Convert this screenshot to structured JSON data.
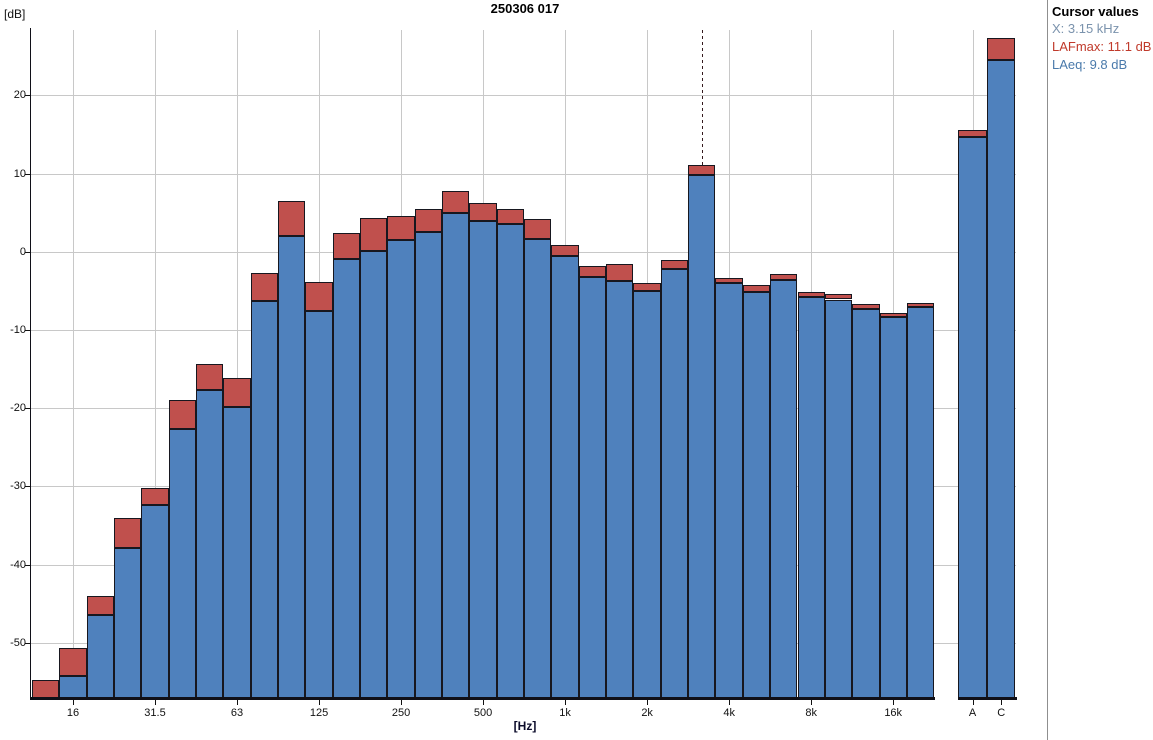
{
  "title": "250306 017",
  "axes": {
    "y_unit_label": "[dB]",
    "x_unit_label": "[Hz]",
    "y_ticks": [
      20,
      10,
      0,
      -10,
      -20,
      -30,
      -40,
      -50
    ],
    "x_tick_labels": [
      "16",
      "31.5",
      "63",
      "125",
      "250",
      "500",
      "1k",
      "2k",
      "4k",
      "8k",
      "16k",
      "A",
      "C"
    ]
  },
  "cursor_panel": {
    "title": "Cursor values",
    "x_line": "X: 3.15 kHz",
    "lafmax_line": "LAFmax: 11.1 dB",
    "laeq_line": "LAeq: 9.8 dB"
  },
  "colors": {
    "bar_fill_laeq": "#4f81bd",
    "bar_fill_lafmax": "#c0504d",
    "bar_border": "#17171f",
    "grid": "#c8c8c8",
    "axis": "#101018",
    "cursor_line": "#351a1e",
    "panel_title": "#000000",
    "panel_x": "#7b93ad",
    "panel_lafmax": "#c03a2b",
    "panel_laeq": "#4a7aab",
    "separator": "#8f8f8f"
  },
  "chart_data": {
    "type": "bar",
    "title": "250306 017",
    "xlabel": "[Hz]",
    "ylabel": "[dB]",
    "ylim": [
      -57,
      28.5
    ],
    "grid": true,
    "categories": [
      "12.5",
      "16",
      "20",
      "25",
      "31.5",
      "40",
      "50",
      "63",
      "80",
      "100",
      "125",
      "160",
      "200",
      "250",
      "315",
      "400",
      "500",
      "630",
      "800",
      "1k",
      "1.25k",
      "1.6k",
      "2k",
      "2.5k",
      "3.15k",
      "4k",
      "5k",
      "6.3k",
      "8k",
      "10k",
      "12.5k",
      "16k",
      "20k",
      "A",
      "C"
    ],
    "labeled_band_indices": [
      1,
      4,
      7,
      10,
      13,
      16,
      19,
      22,
      25,
      28,
      31,
      33,
      34
    ],
    "vertical_gridline_indices": [
      1,
      4,
      7,
      10,
      13,
      16,
      19,
      22,
      25,
      28,
      31,
      33
    ],
    "series": [
      {
        "name": "LAeq",
        "values": [
          -57,
          -54.3,
          -46.4,
          -37.9,
          -32.4,
          -22.6,
          -17.7,
          -19.8,
          -6.3,
          2.0,
          -7.6,
          -0.9,
          0.1,
          1.5,
          2.5,
          5.0,
          4.0,
          3.5,
          1.7,
          -0.5,
          -3.2,
          -3.7,
          -5.0,
          -2.2,
          9.8,
          -4.0,
          -5.2,
          -3.6,
          -5.8,
          -6.1,
          -7.3,
          -8.3,
          -7.0,
          14.7,
          24.5
        ]
      },
      {
        "name": "LAFmax",
        "values": [
          -54.7,
          -50.7,
          -44.0,
          -34.0,
          -30.2,
          -19.0,
          -14.4,
          -16.2,
          -2.7,
          6.5,
          -3.8,
          2.4,
          4.3,
          4.6,
          5.5,
          7.8,
          6.2,
          5.5,
          4.2,
          0.9,
          -1.8,
          -1.6,
          -4.0,
          -1.0,
          11.1,
          -3.3,
          -4.2,
          -2.8,
          -5.2,
          -5.4,
          -6.7,
          -7.8,
          -6.5,
          15.6,
          27.4
        ]
      }
    ],
    "cursor": {
      "band": "3.15k",
      "band_index": 24,
      "x_label": "3.15 kHz",
      "lafmax_db": 11.1,
      "laeq_db": 9.8
    }
  }
}
